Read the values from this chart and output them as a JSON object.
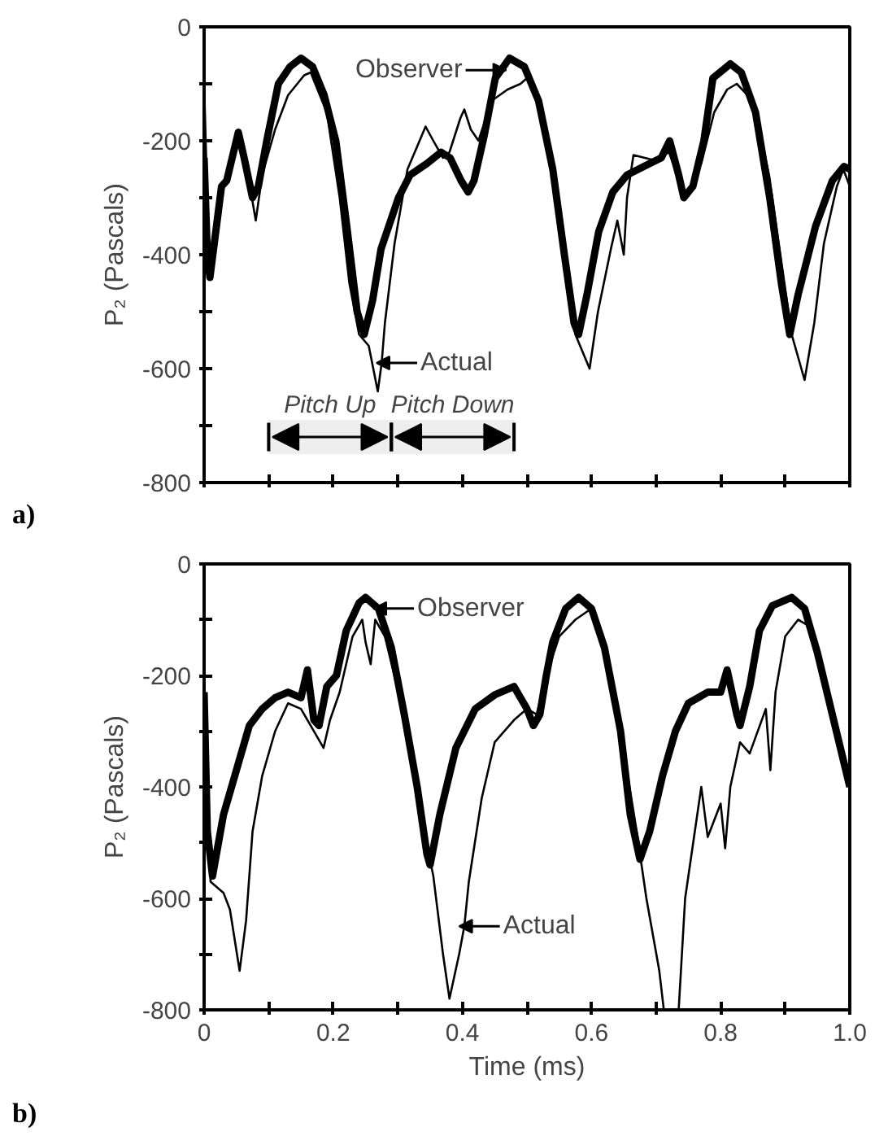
{
  "chart_data": [
    {
      "type": "line",
      "ylabel": "P₂ (Pascals)",
      "xlim": [
        0,
        1.0
      ],
      "ylim": [
        -800,
        0
      ],
      "tick_labels": "y",
      "grid": false,
      "xticks": [
        {
          "value": 0,
          "label": null
        },
        {
          "value": 0.1,
          "label": null
        },
        {
          "value": 0.2,
          "label": null
        },
        {
          "value": 0.3,
          "label": null
        },
        {
          "value": 0.4,
          "label": null
        },
        {
          "value": 0.5,
          "label": null
        },
        {
          "value": 0.6,
          "label": null
        },
        {
          "value": 0.7,
          "label": null
        },
        {
          "value": 0.8,
          "label": null
        },
        {
          "value": 0.9,
          "label": null
        },
        {
          "value": 1.0,
          "label": null
        }
      ],
      "yticks": [
        -800,
        {
          "value": -700,
          "label": null
        },
        -600,
        {
          "value": -500,
          "label": null
        },
        -400,
        {
          "value": -300,
          "label": null
        },
        -200,
        {
          "value": -100,
          "label": null
        },
        0
      ],
      "series": [
        {
          "color": "#000000",
          "x": [
            0,
            0.005,
            0.009,
            0.027,
            0.035,
            0.053,
            0.062,
            0.075,
            0.084,
            0.097,
            0.115,
            0.133,
            0.15,
            0.168,
            0.186,
            0.204,
            0.221,
            0.237,
            0.248,
            0.261,
            0.274,
            0.301,
            0.319,
            0.345,
            0.367,
            0.381,
            0.398,
            0.409,
            0.418,
            0.434,
            0.451,
            0.46,
            0.473,
            0.496,
            0.518,
            0.54,
            0.558,
            0.573,
            0.58,
            0.593,
            0.611,
            0.633,
            0.655,
            0.69,
            0.708,
            0.721,
            0.735,
            0.743,
            0.757,
            0.774,
            0.788,
            0.815,
            0.832,
            0.854,
            0.876,
            0.894,
            0.907,
            0.92,
            0.947,
            0.973,
            0.991,
            1.0
          ],
          "values": [
            -230,
            -400,
            -440,
            -280,
            -270,
            -185,
            -230,
            -300,
            -280,
            -200,
            -100,
            -70,
            -55,
            -70,
            -120,
            -200,
            -350,
            -500,
            -540,
            -480,
            -390,
            -300,
            -260,
            -240,
            -220,
            -230,
            -270,
            -290,
            -270,
            -190,
            -90,
            -76,
            -55,
            -70,
            -130,
            -250,
            -400,
            -520,
            -540,
            -470,
            -360,
            -290,
            -260,
            -240,
            -230,
            -200,
            -260,
            -300,
            -280,
            -200,
            -90,
            -65,
            -80,
            -150,
            -300,
            -450,
            -540,
            -470,
            -350,
            -270,
            -245,
            -250
          ]
        },
        {
          "color": "#000000",
          "x": [
            0,
            0.008,
            0.03,
            0.053,
            0.065,
            0.08,
            0.09,
            0.11,
            0.13,
            0.155,
            0.165,
            0.19,
            0.21,
            0.225,
            0.24,
            0.255,
            0.269,
            0.275,
            0.28,
            0.295,
            0.315,
            0.33,
            0.343,
            0.355,
            0.37,
            0.38,
            0.397,
            0.403,
            0.413,
            0.425,
            0.445,
            0.47,
            0.49,
            0.5,
            0.52,
            0.54,
            0.558,
            0.575,
            0.597,
            0.61,
            0.63,
            0.64,
            0.65,
            0.655,
            0.665,
            0.7,
            0.72,
            0.745,
            0.77,
            0.79,
            0.81,
            0.825,
            0.85,
            0.875,
            0.895,
            0.91,
            0.93,
            0.945,
            0.96,
            0.98,
            0.99,
            1.0
          ],
          "values": [
            -100,
            -430,
            -280,
            -190,
            -240,
            -340,
            -260,
            -180,
            -120,
            -85,
            -80,
            -150,
            -300,
            -450,
            -540,
            -560,
            -640,
            -590,
            -520,
            -380,
            -250,
            -210,
            -175,
            -200,
            -230,
            -220,
            -160,
            -145,
            -180,
            -200,
            -130,
            -110,
            -100,
            -90,
            -140,
            -250,
            -400,
            -540,
            -600,
            -500,
            -390,
            -340,
            -400,
            -300,
            -225,
            -235,
            -220,
            -300,
            -240,
            -150,
            -110,
            -100,
            -130,
            -260,
            -420,
            -540,
            -620,
            -520,
            -380,
            -280,
            -250,
            -280
          ]
        }
      ],
      "annotations": [
        "a)",
        {
          "text": "Observer",
          "x": 0.46,
          "y": -76
        },
        {
          "text": "Actual",
          "x": 0.275,
          "y": -590
        }
      ],
      "bands": [
        {
          "axis": "x",
          "from": 0.1,
          "to": 0.29,
          "label": "Pitch Up",
          "color": "#eeeeee"
        },
        {
          "axis": "x",
          "from": 0.29,
          "to": 0.48,
          "label": "Pitch Down",
          "color": "#eeeeee"
        }
      ]
    },
    {
      "type": "line",
      "ylabel": "P₂ (Pascals)",
      "xlabel": "Time (ms)",
      "xlim": [
        0,
        1.0
      ],
      "ylim": [
        -800,
        0
      ],
      "grid": false,
      "xticks": [
        0,
        {
          "value": 0.1,
          "label": null
        },
        0.2,
        {
          "value": 0.3,
          "label": null
        },
        0.4,
        {
          "value": 0.5,
          "label": null
        },
        0.6,
        {
          "value": 0.7,
          "label": null
        },
        0.8,
        {
          "value": 0.9,
          "label": null
        },
        {
          "value": 1.0,
          "label": "1.0"
        }
      ],
      "yticks": [
        -800,
        {
          "value": -700,
          "label": null
        },
        -600,
        {
          "value": -500,
          "label": null
        },
        -400,
        {
          "value": -300,
          "label": null
        },
        -200,
        {
          "value": -100,
          "label": null
        },
        0
      ],
      "series": [
        {
          "color": "#000000",
          "x": [
            0,
            0.005,
            0.013,
            0.03,
            0.05,
            0.07,
            0.09,
            0.11,
            0.13,
            0.15,
            0.16,
            0.17,
            0.178,
            0.19,
            0.205,
            0.22,
            0.24,
            0.25,
            0.27,
            0.29,
            0.31,
            0.33,
            0.345,
            0.35,
            0.365,
            0.39,
            0.42,
            0.45,
            0.48,
            0.5,
            0.51,
            0.52,
            0.53,
            0.54,
            0.56,
            0.58,
            0.6,
            0.62,
            0.645,
            0.66,
            0.675,
            0.69,
            0.71,
            0.73,
            0.75,
            0.78,
            0.8,
            0.81,
            0.825,
            0.83,
            0.845,
            0.86,
            0.88,
            0.91,
            0.93,
            0.95,
            0.975,
            1.0
          ],
          "values": [
            -230,
            -480,
            -560,
            -450,
            -370,
            -290,
            -260,
            -240,
            -230,
            -240,
            -190,
            -280,
            -290,
            -220,
            -200,
            -120,
            -70,
            -60,
            -80,
            -150,
            -270,
            -400,
            -520,
            -540,
            -450,
            -330,
            -260,
            -235,
            -220,
            -260,
            -290,
            -270,
            -200,
            -140,
            -80,
            -60,
            -80,
            -150,
            -300,
            -450,
            -530,
            -480,
            -380,
            -300,
            -250,
            -230,
            -230,
            -190,
            -270,
            -290,
            -220,
            -120,
            -75,
            -60,
            -80,
            -160,
            -280,
            -400
          ]
        },
        {
          "color": "#000000",
          "x": [
            0,
            0.01,
            0.03,
            0.04,
            0.055,
            0.065,
            0.075,
            0.09,
            0.11,
            0.13,
            0.15,
            0.165,
            0.185,
            0.195,
            0.21,
            0.23,
            0.245,
            0.25,
            0.258,
            0.265,
            0.28,
            0.305,
            0.33,
            0.355,
            0.37,
            0.38,
            0.395,
            0.403,
            0.41,
            0.43,
            0.45,
            0.48,
            0.5,
            0.515,
            0.53,
            0.55,
            0.575,
            0.6,
            0.62,
            0.645,
            0.67,
            0.685,
            0.705,
            0.712,
            0.735,
            0.745,
            0.76,
            0.77,
            0.78,
            0.8,
            0.807,
            0.815,
            0.83,
            0.845,
            0.87,
            0.877,
            0.885,
            0.9,
            0.92,
            0.935,
            0.96,
            0.985,
            1.0
          ],
          "values": [
            -250,
            -570,
            -590,
            -620,
            -730,
            -640,
            -480,
            -380,
            -300,
            -250,
            -260,
            -290,
            -330,
            -280,
            -230,
            -130,
            -100,
            -140,
            -180,
            -100,
            -130,
            -250,
            -420,
            -560,
            -700,
            -780,
            -700,
            -650,
            -570,
            -420,
            -320,
            -280,
            -260,
            -270,
            -200,
            -130,
            -100,
            -80,
            -140,
            -300,
            -480,
            -600,
            -730,
            -800,
            -800,
            -600,
            -480,
            -400,
            -490,
            -430,
            -510,
            -400,
            -320,
            -340,
            -260,
            -370,
            -230,
            -130,
            -100,
            -110,
            -200,
            -320,
            -380
          ]
        }
      ],
      "annotations": [
        "b)",
        {
          "text": "Observer",
          "x": 0.27,
          "y": -80
        },
        {
          "text": "Actual",
          "x": 0.403,
          "y": -650
        }
      ]
    }
  ]
}
